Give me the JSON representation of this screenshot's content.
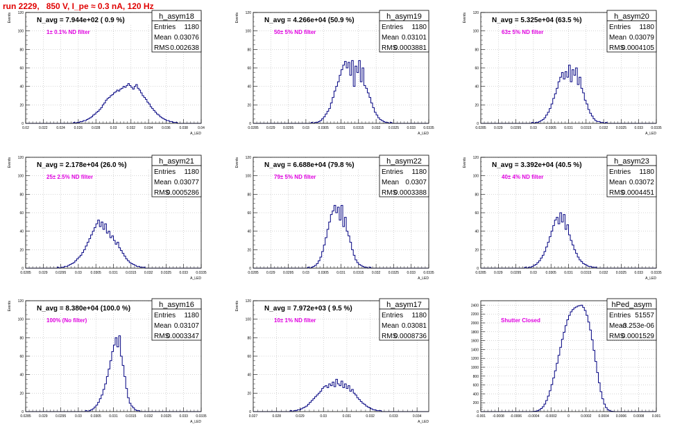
{
  "title": "run 2229,   850 V, I_pe ≈ 0.3 nA, 120 Hz",
  "stat_labels": {
    "entries": "Entries",
    "mean": "Mean",
    "rms": "RMS"
  },
  "colors": {
    "hist": "#000080",
    "title": "#e00000",
    "annotation": "#e000e0",
    "grid": "#aaaaaa"
  },
  "chart_data": [
    {
      "type": "bar",
      "name": "h_asym18",
      "navg": "N_avg = 7.944e+02 ( 0.9 %)",
      "filter": "1± 0.1% ND filter",
      "entries": "1180",
      "mean": "0.03076",
      "rms": "0.002638",
      "ylabel": "Events",
      "xlabel": "A_LED",
      "ylim": [
        0,
        120
      ],
      "yticks": [
        "0",
        "20",
        "40",
        "60",
        "80",
        "100",
        "120"
      ],
      "xticks": [
        "0.02",
        "0.022",
        "0.024",
        "0.026",
        "0.028",
        "0.03",
        "0.032",
        "0.034",
        "0.036",
        "0.038",
        "0.04"
      ],
      "xlim": [
        0.02,
        0.04
      ],
      "values": [
        0,
        0,
        0,
        0,
        0,
        0,
        0,
        0,
        0,
        0,
        0,
        0,
        0,
        0,
        0,
        0,
        0,
        0,
        0,
        0,
        0,
        0,
        0,
        0,
        0,
        0,
        0,
        0,
        0,
        0,
        1,
        0,
        1,
        1,
        2,
        2,
        3,
        3,
        4,
        5,
        6,
        7,
        9,
        10,
        12,
        13,
        15,
        17,
        20,
        22,
        25,
        27,
        28,
        30,
        31,
        33,
        34,
        36,
        35,
        37,
        38,
        40,
        39,
        41,
        43,
        41,
        39,
        37,
        40,
        42,
        38,
        36,
        33,
        30,
        28,
        26,
        23,
        21,
        18,
        16,
        14,
        12,
        10,
        9,
        7,
        6,
        5,
        4,
        3,
        3,
        2,
        2,
        1,
        1,
        1,
        0,
        0,
        0,
        0,
        0,
        0,
        0,
        0,
        0,
        0,
        0,
        0,
        0,
        0,
        0
      ]
    },
    {
      "type": "bar",
      "name": "h_asym19",
      "navg": "N_avg = 4.266e+04 (50.9 %)",
      "filter": "50± 5% ND filter",
      "entries": "1180",
      "mean": "0.03101",
      "rms": "0.0003881",
      "ylabel": "Events",
      "xlabel": "A_LED",
      "ylim": [
        0,
        120
      ],
      "yticks": [
        "0",
        "20",
        "40",
        "60",
        "80",
        "100",
        "120"
      ],
      "xticks": [
        "0.0285",
        "0.029",
        "0.0295",
        "0.03",
        "0.0305",
        "0.031",
        "0.0315",
        "0.032",
        "0.0325",
        "0.033",
        "0.0335"
      ],
      "xlim": [
        0.0285,
        0.0335
      ],
      "values": [
        0,
        0,
        0,
        0,
        0,
        0,
        0,
        0,
        0,
        0,
        0,
        0,
        0,
        0,
        0,
        0,
        0,
        0,
        0,
        0,
        0,
        0,
        0,
        0,
        0,
        0,
        0,
        0,
        0,
        0,
        0,
        0,
        0,
        1,
        0,
        1,
        1,
        2,
        3,
        5,
        7,
        10,
        13,
        16,
        22,
        28,
        35,
        40,
        45,
        52,
        58,
        63,
        67,
        60,
        66,
        52,
        68,
        40,
        62,
        55,
        68,
        45,
        60,
        41,
        38,
        33,
        28,
        22,
        17,
        12,
        9,
        6,
        4,
        3,
        2,
        1,
        1,
        0,
        1,
        0,
        0,
        0,
        0,
        0,
        0,
        0,
        0,
        0,
        0,
        0,
        0,
        0,
        0,
        0,
        0,
        0,
        0,
        0,
        0,
        0
      ]
    },
    {
      "type": "bar",
      "name": "h_asym20",
      "navg": "N_avg = 5.325e+04 (63.5 %)",
      "filter": "63± 5% ND filter",
      "entries": "1180",
      "mean": "0.03079",
      "rms": "0.0004105",
      "ylabel": "Events",
      "xlabel": "A_LED",
      "ylim": [
        0,
        120
      ],
      "yticks": [
        "0",
        "20",
        "40",
        "60",
        "80",
        "100",
        "120"
      ],
      "xticks": [
        "0.0285",
        "0.029",
        "0.0295",
        "0.03",
        "0.0305",
        "0.031",
        "0.0315",
        "0.032",
        "0.0325",
        "0.033",
        "0.0335"
      ],
      "xlim": [
        0.0285,
        0.0335
      ],
      "values": [
        0,
        0,
        0,
        0,
        0,
        0,
        0,
        0,
        0,
        0,
        0,
        0,
        0,
        0,
        0,
        0,
        0,
        0,
        0,
        0,
        0,
        0,
        0,
        0,
        0,
        0,
        0,
        0,
        0,
        1,
        0,
        1,
        1,
        2,
        3,
        4,
        6,
        9,
        12,
        16,
        21,
        27,
        32,
        38,
        45,
        50,
        55,
        48,
        56,
        50,
        63,
        45,
        58,
        52,
        60,
        42,
        50,
        38,
        33,
        25,
        21,
        15,
        11,
        8,
        5,
        3,
        2,
        2,
        1,
        1,
        0,
        1,
        0,
        0,
        0,
        0,
        0,
        0,
        0,
        0,
        0,
        0,
        0,
        0,
        0,
        0,
        0,
        0,
        0,
        0,
        0,
        0,
        0,
        0,
        0,
        0,
        0,
        0,
        0,
        0
      ]
    },
    {
      "type": "bar",
      "name": "h_asym21",
      "navg": "N_avg = 2.178e+04 (26.0 %)",
      "filter": "25± 2.5% ND filter",
      "entries": "1180",
      "mean": "0.03077",
      "rms": "0.0005286",
      "ylabel": "Events",
      "xlabel": "A_LED",
      "ylim": [
        0,
        120
      ],
      "yticks": [
        "0",
        "20",
        "40",
        "60",
        "80",
        "100",
        "120"
      ],
      "xticks": [
        "0.0285",
        "0.029",
        "0.0295",
        "0.03",
        "0.0305",
        "0.031",
        "0.0315",
        "0.032",
        "0.0325",
        "0.033",
        "0.0335"
      ],
      "xlim": [
        0.0285,
        0.0335
      ],
      "values": [
        0,
        0,
        0,
        0,
        0,
        0,
        0,
        0,
        0,
        0,
        0,
        0,
        0,
        0,
        0,
        0,
        0,
        0,
        1,
        0,
        1,
        1,
        2,
        2,
        3,
        4,
        5,
        6,
        8,
        10,
        12,
        14,
        17,
        20,
        24,
        28,
        32,
        36,
        40,
        44,
        48,
        52,
        45,
        50,
        42,
        48,
        38,
        40,
        33,
        35,
        30,
        26,
        28,
        22,
        19,
        16,
        13,
        10,
        8,
        6,
        5,
        4,
        3,
        2,
        2,
        1,
        1,
        1,
        0,
        0,
        0,
        0,
        0,
        0,
        0,
        0,
        0,
        0,
        0,
        0,
        0,
        0,
        0,
        0,
        0,
        0,
        0,
        0,
        0,
        0,
        0,
        0,
        0,
        0,
        0,
        0,
        0,
        0,
        0,
        0
      ]
    },
    {
      "type": "bar",
      "name": "h_asym22",
      "navg": "N_avg = 6.688e+04 (79.8 %)",
      "filter": "79± 5% ND filter",
      "entries": "1180",
      "mean": "0.0307",
      "rms": "0.0003388",
      "ylabel": "Events",
      "xlabel": "A_LED",
      "ylim": [
        0,
        120
      ],
      "yticks": [
        "0",
        "20",
        "40",
        "60",
        "80",
        "100",
        "120"
      ],
      "xticks": [
        "0.0285",
        "0.029",
        "0.0295",
        "0.03",
        "0.0305",
        "0.031",
        "0.0315",
        "0.032",
        "0.0325",
        "0.033",
        "0.0335"
      ],
      "xlim": [
        0.0285,
        0.0335
      ],
      "values": [
        0,
        0,
        0,
        0,
        0,
        0,
        0,
        0,
        0,
        0,
        0,
        0,
        0,
        0,
        0,
        0,
        0,
        0,
        0,
        0,
        0,
        0,
        0,
        0,
        0,
        0,
        0,
        0,
        0,
        0,
        0,
        1,
        0,
        1,
        2,
        3,
        5,
        8,
        12,
        18,
        25,
        33,
        42,
        50,
        58,
        62,
        68,
        60,
        66,
        52,
        68,
        45,
        55,
        40,
        35,
        28,
        20,
        14,
        9,
        6,
        4,
        3,
        2,
        1,
        1,
        0,
        1,
        0,
        0,
        0,
        0,
        0,
        0,
        0,
        0,
        0,
        0,
        0,
        0,
        0,
        0,
        0,
        0,
        0,
        0,
        0,
        0,
        0,
        0,
        0,
        0,
        0,
        0,
        0,
        0,
        0,
        0,
        0,
        0,
        0
      ]
    },
    {
      "type": "bar",
      "name": "h_asym23",
      "navg": "N_avg = 3.392e+04 (40.5 %)",
      "filter": "40± 4% ND filter",
      "entries": "1180",
      "mean": "0.03072",
      "rms": "0.0004451",
      "ylabel": "Events",
      "xlabel": "A_LED",
      "ylim": [
        0,
        120
      ],
      "yticks": [
        "0",
        "20",
        "40",
        "60",
        "80",
        "100",
        "120"
      ],
      "xticks": [
        "0.0285",
        "0.029",
        "0.0295",
        "0.03",
        "0.0305",
        "0.031",
        "0.0315",
        "0.032",
        "0.0325",
        "0.033",
        "0.0335"
      ],
      "xlim": [
        0.0285,
        0.0335
      ],
      "values": [
        0,
        0,
        0,
        0,
        0,
        0,
        0,
        0,
        0,
        0,
        0,
        0,
        0,
        0,
        0,
        0,
        0,
        0,
        0,
        0,
        0,
        0,
        0,
        0,
        0,
        1,
        0,
        1,
        1,
        2,
        3,
        4,
        6,
        8,
        11,
        14,
        18,
        23,
        28,
        34,
        40,
        46,
        52,
        55,
        48,
        60,
        50,
        58,
        42,
        47,
        36,
        30,
        25,
        20,
        16,
        12,
        9,
        7,
        5,
        4,
        3,
        2,
        2,
        1,
        1,
        1,
        0,
        0,
        0,
        0,
        0,
        0,
        0,
        0,
        0,
        0,
        0,
        0,
        0,
        0,
        0,
        0,
        0,
        0,
        0,
        0,
        0,
        0,
        0,
        0,
        0,
        0,
        0,
        0,
        0,
        0,
        0,
        0,
        0,
        0
      ]
    },
    {
      "type": "bar",
      "name": "h_asym16",
      "navg": "N_avg = 8.380e+04 (100.0 %)",
      "filter": "100% (No filter)",
      "entries": "1180",
      "mean": "0.03107",
      "rms": "0.0003347",
      "ylabel": "Events",
      "xlabel": "A_LED",
      "ylim": [
        0,
        120
      ],
      "yticks": [
        "0",
        "20",
        "40",
        "60",
        "80",
        "100",
        "120"
      ],
      "xticks": [
        "0.0285",
        "0.029",
        "0.0295",
        "0.03",
        "0.0305",
        "0.031",
        "0.0315",
        "0.032",
        "0.0325",
        "0.033",
        "0.0335"
      ],
      "xlim": [
        0.0285,
        0.0335
      ],
      "values": [
        0,
        0,
        0,
        0,
        0,
        0,
        0,
        0,
        0,
        0,
        0,
        0,
        0,
        0,
        0,
        0,
        0,
        0,
        0,
        0,
        0,
        0,
        0,
        0,
        0,
        0,
        0,
        0,
        0,
        0,
        0,
        0,
        0,
        0,
        1,
        0,
        1,
        2,
        3,
        5,
        7,
        10,
        14,
        18,
        24,
        30,
        38,
        46,
        55,
        65,
        72,
        80,
        70,
        82,
        60,
        50,
        38,
        25,
        15,
        9,
        6,
        4,
        2,
        1,
        1,
        0,
        0,
        0,
        0,
        0,
        0,
        0,
        0,
        0,
        0,
        0,
        0,
        0,
        0,
        0,
        0,
        0,
        0,
        0,
        0,
        0,
        0,
        0,
        0,
        0,
        0,
        0,
        0,
        0,
        0,
        0,
        0,
        0,
        0,
        0
      ]
    },
    {
      "type": "bar",
      "name": "h_asym17",
      "navg": "N_avg = 7.972e+03 ( 9.5 %)",
      "filter": "10± 1% ND filter",
      "entries": "1180",
      "mean": "0.03081",
      "rms": "0.0008736",
      "ylabel": "Events",
      "xlabel": "A_LED",
      "ylim": [
        0,
        120
      ],
      "yticks": [
        "0",
        "20",
        "40",
        "60",
        "80",
        "100",
        "120"
      ],
      "xticks": [
        "0.027",
        "0.028",
        "0.029",
        "0.03",
        "0.031",
        "0.032",
        "0.033",
        "0.034"
      ],
      "xlim": [
        0.027,
        0.0345
      ],
      "values": [
        0,
        0,
        0,
        0,
        0,
        0,
        0,
        0,
        0,
        0,
        0,
        0,
        0,
        0,
        0,
        0,
        0,
        0,
        0,
        0,
        0,
        1,
        0,
        1,
        1,
        2,
        2,
        3,
        4,
        5,
        6,
        8,
        10,
        12,
        14,
        16,
        18,
        20,
        22,
        25,
        27,
        28,
        26,
        30,
        28,
        32,
        27,
        35,
        30,
        28,
        33,
        26,
        30,
        25,
        28,
        22,
        24,
        20,
        18,
        15,
        13,
        11,
        9,
        8,
        6,
        5,
        4,
        3,
        2,
        2,
        1,
        1,
        1,
        0,
        0,
        0,
        0,
        0,
        0,
        0,
        0,
        0,
        0,
        0,
        0,
        0,
        0,
        0,
        0,
        0,
        0,
        0,
        0,
        0,
        0,
        0,
        0,
        0,
        0,
        0
      ]
    },
    {
      "type": "bar",
      "name": "hPed_asym",
      "navg": "",
      "filter": "Shutter Closed",
      "entries": "51557",
      "mean": "-3.253e-06",
      "rms": "0.0001529",
      "ylabel": "",
      "xlabel": "",
      "ylim": [
        0,
        2500
      ],
      "yticks": [
        "0",
        "200",
        "400",
        "600",
        "800",
        "1000",
        "1200",
        "1400",
        "1600",
        "1800",
        "2000",
        "2200",
        "2400"
      ],
      "xticks": [
        "-0.001",
        "-0.0008",
        "-0.0006",
        "-0.0004",
        "-0.0002",
        "0",
        "0.0002",
        "0.0004",
        "0.0006",
        "0.0008",
        "0.001"
      ],
      "xlim": [
        -0.001,
        0.001
      ],
      "values": [
        0,
        0,
        0,
        0,
        0,
        0,
        0,
        0,
        0,
        0,
        0,
        0,
        0,
        0,
        0,
        0,
        0,
        0,
        0,
        0,
        0,
        0,
        0,
        0,
        0,
        0,
        0,
        0,
        0,
        2,
        5,
        10,
        20,
        40,
        70,
        110,
        170,
        250,
        350,
        470,
        610,
        760,
        920,
        1090,
        1270,
        1450,
        1630,
        1790,
        1940,
        2070,
        2170,
        2250,
        2300,
        2340,
        2360,
        2380,
        2390,
        2400,
        2350,
        2280,
        2170,
        2020,
        1840,
        1620,
        1380,
        1130,
        880,
        650,
        450,
        290,
        170,
        90,
        45,
        20,
        8,
        3,
        1,
        0,
        0,
        0,
        0,
        0,
        0,
        0,
        0,
        0,
        0,
        0,
        0,
        0,
        0,
        0,
        0,
        0,
        0,
        0,
        0,
        0,
        0,
        0
      ]
    }
  ]
}
